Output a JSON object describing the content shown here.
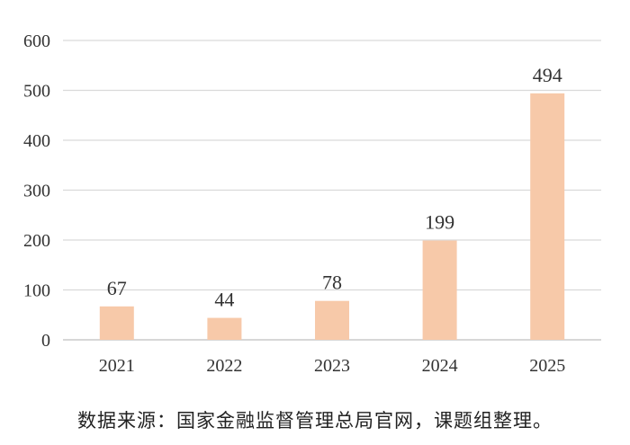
{
  "chart_data": {
    "type": "bar",
    "categories": [
      "2021",
      "2022",
      "2023",
      "2024",
      "2025"
    ],
    "values": [
      67,
      44,
      78,
      199,
      494
    ],
    "data_labels": [
      "67",
      "44",
      "78",
      "199",
      "494"
    ],
    "title": "",
    "xlabel": "",
    "ylabel": "",
    "ylim": [
      0,
      600
    ],
    "yticks": [
      "0",
      "100",
      "200",
      "300",
      "400",
      "500",
      "600"
    ],
    "grid": true,
    "legend": "none",
    "bar_color": "#f7c9a9",
    "grid_color": "#d9d9d9"
  },
  "source_note": "数据来源：国家金融监督管理总局官网，课题组整理。"
}
